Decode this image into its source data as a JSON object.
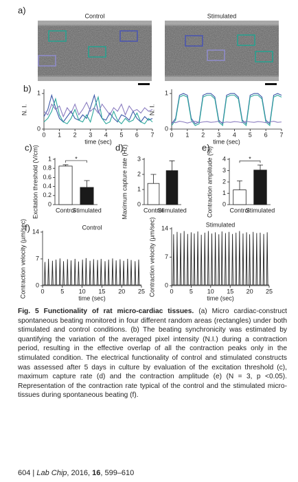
{
  "figure": {
    "panels": [
      {
        "type": "image",
        "label": "a)",
        "images": [
          {
            "title": "Control"
          },
          {
            "title": "Stimulated"
          }
        ]
      },
      {
        "type": "line",
        "label": "b)",
        "ylabel": "N. I.",
        "xlabel": "time (sec)",
        "x": [
          0,
          0.25,
          0.5,
          0.75,
          1,
          1.25,
          1.5,
          1.75,
          2,
          2.25,
          2.5,
          2.75,
          3,
          3.25,
          3.5,
          3.75,
          4,
          4.25,
          4.5,
          4.75,
          5,
          5.25,
          5.5,
          5.75,
          6,
          6.25,
          6.5,
          6.75,
          7
        ],
        "series": [
          {
            "color": "#3a57a7",
            "values": [
              0.35,
              0.55,
              0.95,
              0.6,
              0.3,
              0.2,
              0.35,
              0.5,
              0.3,
              0.25,
              0.4,
              0.3,
              0.6,
              0.95,
              0.5,
              0.3,
              0.25,
              0.45,
              0.3,
              0.2,
              0.4,
              0.35,
              0.25,
              0.5,
              0.3,
              0.2,
              0.35,
              0.25,
              0.3
            ]
          },
          {
            "color": "#2aa79b",
            "values": [
              0.2,
              0.3,
              0.5,
              0.85,
              0.4,
              0.2,
              0.15,
              0.3,
              0.55,
              0.25,
              0.2,
              0.4,
              0.2,
              0.6,
              0.9,
              0.3,
              0.15,
              0.2,
              0.5,
              0.25,
              0.15,
              0.3,
              0.2,
              0.25,
              0.45,
              0.2,
              0.15,
              0.3,
              0.2
            ]
          },
          {
            "color": "#8a7cc0",
            "values": [
              0.5,
              0.4,
              0.7,
              0.55,
              0.65,
              0.35,
              0.6,
              0.45,
              0.7,
              0.4,
              0.55,
              0.75,
              0.5,
              0.6,
              0.45,
              0.7,
              0.55,
              0.4,
              0.6,
              0.5,
              0.7,
              0.4,
              0.65,
              0.5,
              0.55,
              0.45,
              0.6,
              0.5,
              0.55
            ]
          }
        ],
        "xlim": [
          0,
          7
        ],
        "xticks": [
          0,
          1,
          2,
          3,
          4,
          5,
          6,
          7
        ],
        "ylim": [
          0,
          1.08
        ],
        "yticks": [
          0,
          1
        ]
      },
      {
        "type": "line",
        "ylabel": "N. I.",
        "xlabel": "time (sec)",
        "x": [
          0,
          0.25,
          0.5,
          0.75,
          1,
          1.25,
          1.5,
          1.75,
          2,
          2.25,
          2.5,
          2.75,
          3,
          3.25,
          3.5,
          3.75,
          4,
          4.25,
          4.5,
          4.75,
          5,
          5.25,
          5.5,
          5.75,
          6,
          6.25,
          6.5,
          6.75,
          7
        ],
        "series": [
          {
            "color": "#3a57a7",
            "values": [
              0.15,
              0.3,
              0.95,
              1,
              0.95,
              0.3,
              0.15,
              0.2,
              0.95,
              1,
              1,
              0.9,
              0.25,
              0.15,
              0.95,
              1,
              1,
              0.9,
              0.25,
              0.15,
              0.95,
              1,
              1,
              0.9,
              0.25,
              0.15,
              0.95,
              1,
              0.95
            ]
          },
          {
            "color": "#2aa79b",
            "values": [
              0.1,
              0.25,
              0.9,
              0.95,
              0.9,
              0.25,
              0.1,
              0.15,
              0.9,
              0.95,
              0.95,
              0.85,
              0.2,
              0.1,
              0.9,
              0.95,
              0.95,
              0.85,
              0.2,
              0.1,
              0.9,
              0.95,
              0.95,
              0.85,
              0.2,
              0.1,
              0.9,
              0.95,
              0.9
            ]
          },
          {
            "color": "#8a7cc0",
            "values": [
              0.2,
              0.18,
              0.22,
              0.2,
              0.17,
              0.2,
              0.22,
              0.18,
              0.2,
              0.21,
              0.19,
              0.2,
              0.22,
              0.18,
              0.2,
              0.19,
              0.21,
              0.2,
              0.18,
              0.22,
              0.2,
              0.19,
              0.21,
              0.2,
              0.18,
              0.2,
              0.22,
              0.19,
              0.2
            ]
          }
        ],
        "xlim": [
          0,
          7
        ],
        "xticks": [
          0,
          1,
          2,
          3,
          4,
          5,
          6,
          7
        ],
        "ylim": [
          0,
          1.08
        ],
        "yticks": [
          0,
          1
        ]
      },
      {
        "type": "bar",
        "label": "c)",
        "ylabel": "Excitation threshold (V/cm)",
        "categories": [
          "Control",
          "Stimulated"
        ],
        "values": [
          0.85,
          0.38
        ],
        "errors": [
          0.03,
          0.15
        ],
        "colors": [
          "#ffffff",
          "#1a1a1a"
        ],
        "significance": "*",
        "ylim": [
          0,
          1
        ],
        "yticks": [
          0,
          0.2,
          0.4,
          0.6,
          0.8,
          1
        ]
      },
      {
        "type": "bar",
        "label": "d)",
        "ylabel": "Maximum capture rate (Hz)",
        "categories": [
          "Control",
          "Stimulated"
        ],
        "values": [
          1.4,
          2.25
        ],
        "errors": [
          0.6,
          0.65
        ],
        "colors": [
          "#ffffff",
          "#1a1a1a"
        ],
        "ylim": [
          0,
          3
        ],
        "yticks": [
          0,
          1,
          2,
          3
        ]
      },
      {
        "type": "bar",
        "label": "e)",
        "ylabel": "Contraction amplitude (%)",
        "categories": [
          "Control",
          "Stimulated"
        ],
        "values": [
          1.3,
          3.05
        ],
        "errors": [
          0.8,
          0.45
        ],
        "colors": [
          "#ffffff",
          "#1a1a1a"
        ],
        "significance": "*",
        "ylim": [
          0,
          4
        ],
        "yticks": [
          0,
          1,
          2,
          3,
          4
        ]
      },
      {
        "type": "spike",
        "label": "f)",
        "title": "Control",
        "ylabel": "Contraction velocity (µm/sec)",
        "xlabel": "time (sec)",
        "x": [
          0.6,
          1.5,
          2.5,
          3.4,
          4.4,
          5.3,
          6.3,
          7.2,
          8.2,
          9.1,
          10.1,
          11.0,
          12.0,
          12.9,
          13.9,
          14.8,
          15.8,
          16.7,
          17.7,
          18.6,
          19.6,
          20.5,
          21.5,
          22.4,
          23.4,
          24.3
        ],
        "values": [
          6.2,
          7.0,
          6.5,
          6.8,
          7.1,
          6.4,
          6.9,
          6.6,
          7.0,
          6.3,
          6.8,
          7.2,
          6.5,
          6.9,
          6.7,
          7.0,
          6.4,
          6.8,
          7.1,
          6.6,
          6.9,
          6.5,
          7.0,
          6.7,
          6.4,
          6.8
        ],
        "color": "#222222",
        "xlim": [
          0,
          25
        ],
        "xticks": [
          0,
          5,
          10,
          15,
          20,
          25
        ],
        "ylim": [
          0,
          14
        ],
        "yticks": [
          0,
          7,
          14
        ]
      },
      {
        "type": "spike",
        "title": "Stimulated",
        "ylabel": "Contraction velocity (µm/sec)",
        "xlabel": "time (sec)",
        "x": [
          0.5,
          1.4,
          2.3,
          3.2,
          4.1,
          5.0,
          5.8,
          6.7,
          7.6,
          8.5,
          9.4,
          10.3,
          11.2,
          12.1,
          12.9,
          13.8,
          14.7,
          15.6,
          16.5,
          17.4,
          18.3,
          19.2,
          20.0,
          20.9,
          21.8,
          22.7,
          23.6,
          24.5
        ],
        "values": [
          12.6,
          13.2,
          12.9,
          13.4,
          12.7,
          13.1,
          12.8,
          13.3,
          12.5,
          13.0,
          13.4,
          12.8,
          13.1,
          12.6,
          13.3,
          12.9,
          13.2,
          12.7,
          13.0,
          13.4,
          12.8,
          13.1,
          12.6,
          13.2,
          12.9,
          13.0,
          12.7,
          13.1
        ],
        "color": "#222222",
        "xlim": [
          0,
          25
        ],
        "xticks": [
          0,
          5,
          10,
          15,
          20,
          25
        ],
        "ylim": [
          0,
          14
        ],
        "yticks": [
          0,
          7,
          14
        ]
      }
    ]
  },
  "caption": {
    "label": "Fig. 5",
    "title": "Functionality of rat micro-cardiac tissues.",
    "text": "(a) Micro cardiac-construct spontaneous beating monitored in four different random areas (rectangles) under both stimulated and control conditions. (b) The beating synchronicity was estimated by quantifying the variation of the averaged pixel intensity (N.I.) during a contraction period, resulting in the effective overlap of all the contraction peaks only in the stimulated condition. The electrical functionality of control and stimulated constructs was assessed after 5 days in culture by evaluation of the excitation threshold (c), maximum capture rate (d) and the contraction amplitude (e) (N = 3, p <0.05). Representation of the contraction rate typical of the control and the stimulated micro-tissues during spontaneous beating (f)."
  },
  "footer": {
    "page": "604",
    "separator": "|",
    "journal": "Lab Chip",
    "year": ", 2016, ",
    "volume": "16",
    "pages": ", 599–610"
  }
}
